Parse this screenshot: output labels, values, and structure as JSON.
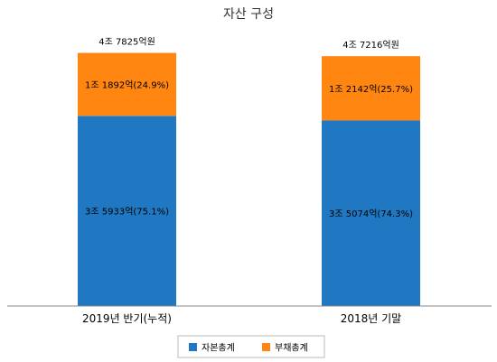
{
  "chart_data": {
    "type": "bar",
    "stacked": true,
    "title": "자산 구성",
    "categories": [
      "2019년 반기(누적)",
      "2018년 기말"
    ],
    "totals_labels": [
      "4조 7825억원",
      "4조 7216억원"
    ],
    "totals": [
      47825,
      47216
    ],
    "series": [
      {
        "name": "자본총계",
        "color": "#1f78c1",
        "values": [
          35933,
          35074
        ],
        "labels": [
          "3조 5933억(75.1%)",
          "3조 5074억(74.3%)"
        ]
      },
      {
        "name": "부채총계",
        "color": "#ff8610",
        "values": [
          11892,
          12142
        ],
        "labels": [
          "1조 1892억(24.9%)",
          "1조 2142억(25.7%)"
        ]
      }
    ],
    "ylim": [
      0,
      50000
    ],
    "grid": false,
    "legend_position": "bottom"
  }
}
